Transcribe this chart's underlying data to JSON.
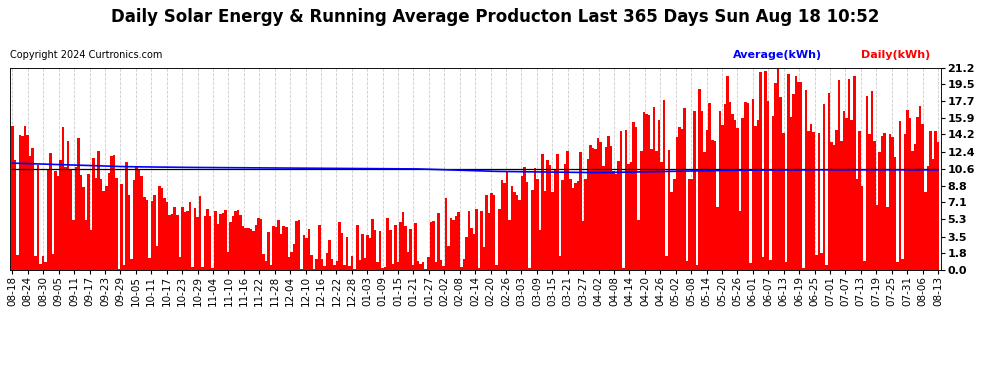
{
  "title": "Daily Solar Energy & Running Average Producton Last 365 Days Sun Aug 18 10:52",
  "copyright": "Copyright 2024 Curtronics.com",
  "legend_avg": "Average(kWh)",
  "legend_daily": "Daily(kWh)",
  "yticks": [
    0.0,
    1.8,
    3.5,
    5.3,
    7.1,
    8.8,
    10.6,
    12.4,
    14.2,
    15.9,
    17.7,
    19.5,
    21.2
  ],
  "ymax": 21.2,
  "ymin": 0.0,
  "bar_color": "#FF0000",
  "avg_line_color": "#0000FF",
  "flat_line_color": "#000000",
  "background_color": "#FFFFFF",
  "grid_color": "#CCCCCC",
  "title_fontsize": 12,
  "tick_fontsize": 8,
  "n_bars": 366,
  "x_tick_labels": [
    "08-18",
    "08-24",
    "08-30",
    "09-05",
    "09-11",
    "09-17",
    "09-23",
    "09-29",
    "10-05",
    "10-11",
    "10-17",
    "10-23",
    "10-29",
    "11-04",
    "11-10",
    "11-16",
    "11-22",
    "11-28",
    "12-04",
    "12-10",
    "12-16",
    "12-22",
    "12-28",
    "01-03",
    "01-09",
    "01-15",
    "01-21",
    "01-27",
    "02-02",
    "02-08",
    "02-14",
    "02-20",
    "02-26",
    "03-03",
    "03-09",
    "03-15",
    "03-21",
    "03-27",
    "04-02",
    "04-08",
    "04-14",
    "04-20",
    "04-26",
    "05-02",
    "05-08",
    "05-14",
    "05-20",
    "05-26",
    "06-01",
    "06-07",
    "06-13",
    "06-19",
    "06-25",
    "07-01",
    "07-07",
    "07-13",
    "07-19",
    "07-25",
    "07-31",
    "08-06",
    "08-13"
  ],
  "avg_line_points": [
    11.2,
    11.15,
    11.1,
    11.05,
    11.0,
    10.95,
    10.9,
    10.85,
    10.82,
    10.8,
    10.78,
    10.76,
    10.75,
    10.74,
    10.73,
    10.72,
    10.71,
    10.7,
    10.69,
    10.68,
    10.67,
    10.66,
    10.65,
    10.64,
    10.63,
    10.62,
    10.61,
    10.6,
    10.55,
    10.5,
    10.45,
    10.4,
    10.35,
    10.32,
    10.3,
    10.28,
    10.26,
    10.24,
    10.22,
    10.2,
    10.22,
    10.25,
    10.28,
    10.31,
    10.34,
    10.37,
    10.4,
    10.42,
    10.44,
    10.46,
    10.47,
    10.48,
    10.49,
    10.5,
    10.5,
    10.5,
    10.5,
    10.5,
    10.5,
    10.5,
    10.5,
    10.5,
    10.5
  ],
  "flat_line_value": 10.6
}
